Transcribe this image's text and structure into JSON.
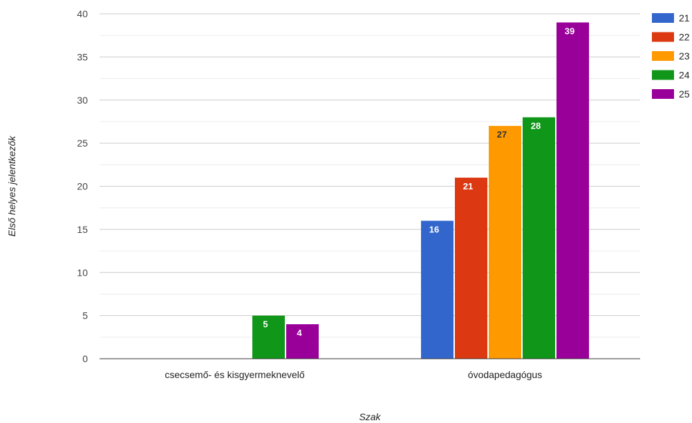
{
  "chart_data": {
    "type": "bar",
    "categories": [
      "csecsemő- és kisgyermeknevelő",
      "óvodapedagógus"
    ],
    "series": [
      {
        "name": "21",
        "color": "#3366cc",
        "values": [
          0,
          16
        ]
      },
      {
        "name": "22",
        "color": "#dc3912",
        "values": [
          0,
          21
        ]
      },
      {
        "name": "23",
        "color": "#ff9900",
        "values": [
          0,
          27
        ]
      },
      {
        "name": "24",
        "color": "#109618",
        "values": [
          5,
          28
        ]
      },
      {
        "name": "25",
        "color": "#990099",
        "values": [
          4,
          39
        ]
      }
    ],
    "label_colors": [
      "#ffffff",
      "#ffffff",
      "#333333",
      "#ffffff",
      "#ffffff"
    ],
    "xlabel": "Szak",
    "ylabel": "Első helyes jelentkezők",
    "ylim": [
      0,
      40
    ],
    "yticks": [
      0,
      5,
      10,
      15,
      20,
      25,
      30,
      35,
      40
    ],
    "grid": true,
    "legend": "right"
  }
}
